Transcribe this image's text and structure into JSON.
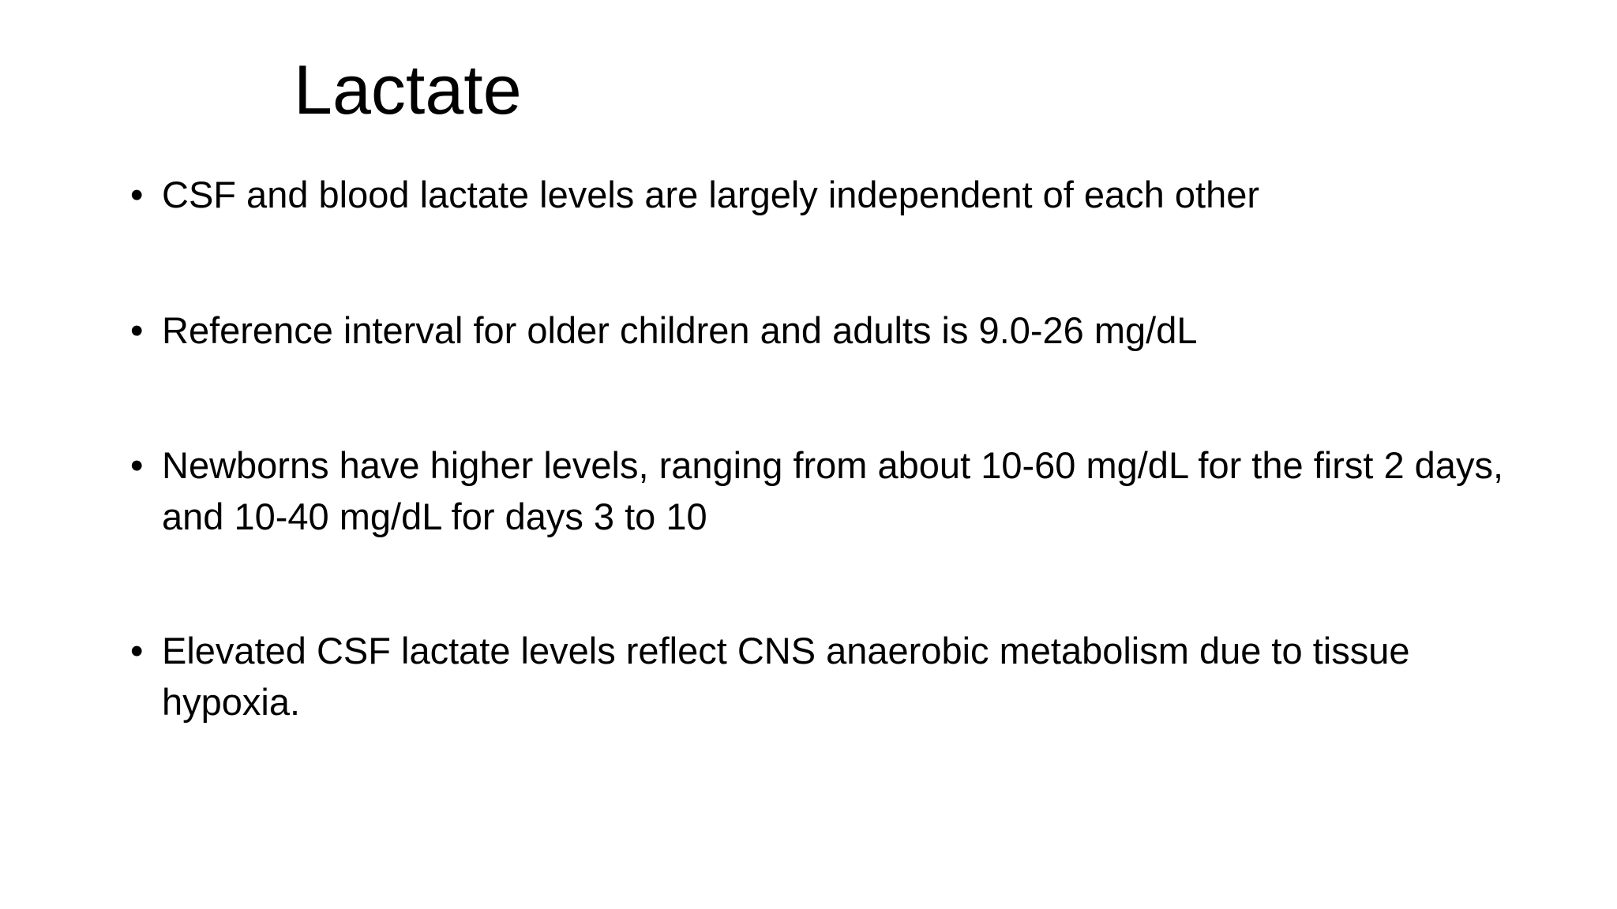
{
  "title": "Lactate",
  "bullets": [
    "CSF and blood lactate levels are largely independent of each other",
    "Reference interval for older children and adults is 9.0-26 mg/dL",
    "Newborns have higher levels, ranging from about 10-60 mg/dL for the first 2 days, and 10-40 mg/dL for days 3 to 10",
    "Elevated CSF lactate levels reflect CNS anaerobic metabolism due to tissue hypoxia."
  ]
}
